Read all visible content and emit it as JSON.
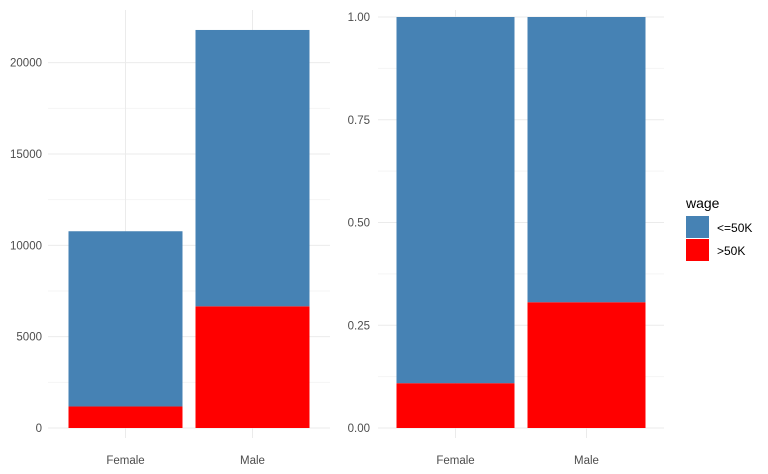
{
  "chart_data": [
    {
      "type": "bar",
      "stacked": true,
      "categories": [
        "Female",
        "Male"
      ],
      "series": [
        {
          "name": "<=50K",
          "color": "#4682B4",
          "values": [
            9592,
            15128
          ]
        },
        {
          "name": ">50K",
          "color": "#FF0000",
          "values": [
            1179,
            6662
          ]
        }
      ],
      "ylim": [
        0,
        22500
      ],
      "yticks": [
        "0",
        "5000",
        "10000",
        "15000",
        "20000"
      ],
      "ytick_values": [
        0,
        5000,
        10000,
        15000,
        20000
      ],
      "grid": true,
      "title": "",
      "xlabel": "",
      "ylabel": ""
    },
    {
      "type": "bar",
      "stacked": true,
      "position": "fill",
      "categories": [
        "Female",
        "Male"
      ],
      "series": [
        {
          "name": "<=50K",
          "color": "#4682B4",
          "values": [
            0.891,
            0.694
          ]
        },
        {
          "name": ">50K",
          "color": "#FF0000",
          "values": [
            0.109,
            0.306
          ]
        }
      ],
      "ylim": [
        0,
        1.0
      ],
      "yticks": [
        "0.00",
        "0.25",
        "0.50",
        "0.75",
        "1.00"
      ],
      "ytick_values": [
        0,
        0.25,
        0.5,
        0.75,
        1.0
      ],
      "grid": true,
      "title": "",
      "xlabel": "",
      "ylabel": ""
    }
  ],
  "legend": {
    "title": "wage",
    "placement": "right",
    "items": [
      {
        "label": "<=50K",
        "color": "#4682B4"
      },
      {
        "label": ">50K",
        "color": "#FF0000"
      }
    ]
  },
  "colors": {
    "grid_major": "#EBEBEB",
    "grid_minor": "#F5F5F5",
    "tick_text": "#4D4D4D"
  }
}
